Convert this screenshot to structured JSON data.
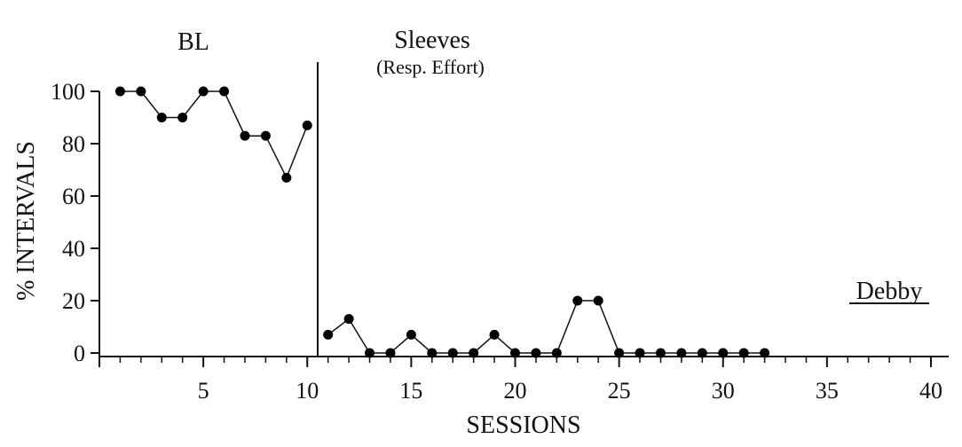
{
  "chart_data": {
    "type": "line",
    "ylabel": "% INTERVALS",
    "xlabel": "SESSIONS",
    "xlim": [
      0,
      40
    ],
    "ylim": [
      0,
      100
    ],
    "x_ticks": [
      5,
      10,
      15,
      20,
      25,
      30,
      35,
      40
    ],
    "y_ticks": [
      0,
      20,
      40,
      60,
      80,
      100
    ],
    "grid": false,
    "phase_change_after_session": 10.5,
    "phases": [
      {
        "label": "BL",
        "sublabel": ""
      },
      {
        "label": "Sleeves",
        "sublabel": "(Resp. Effort)"
      }
    ],
    "participant": "Debby",
    "series": [
      {
        "phase": "BL",
        "points": [
          [
            1,
            100
          ],
          [
            2,
            100
          ],
          [
            3,
            90
          ],
          [
            4,
            90
          ],
          [
            5,
            100
          ],
          [
            6,
            100
          ],
          [
            7,
            83
          ],
          [
            8,
            83
          ],
          [
            9,
            67
          ],
          [
            10,
            87
          ]
        ]
      },
      {
        "phase": "Sleeves",
        "points": [
          [
            11,
            7
          ],
          [
            12,
            13
          ],
          [
            13,
            0
          ],
          [
            14,
            0
          ],
          [
            15,
            7
          ],
          [
            16,
            0
          ],
          [
            17,
            0
          ],
          [
            18,
            0
          ],
          [
            19,
            7
          ],
          [
            20,
            0
          ],
          [
            21,
            0
          ],
          [
            22,
            0
          ],
          [
            23,
            20
          ],
          [
            24,
            20
          ],
          [
            25,
            0
          ],
          [
            26,
            0
          ],
          [
            27,
            0
          ],
          [
            28,
            0
          ],
          [
            29,
            0
          ],
          [
            30,
            0
          ],
          [
            31,
            0
          ],
          [
            32,
            0
          ]
        ]
      }
    ]
  }
}
